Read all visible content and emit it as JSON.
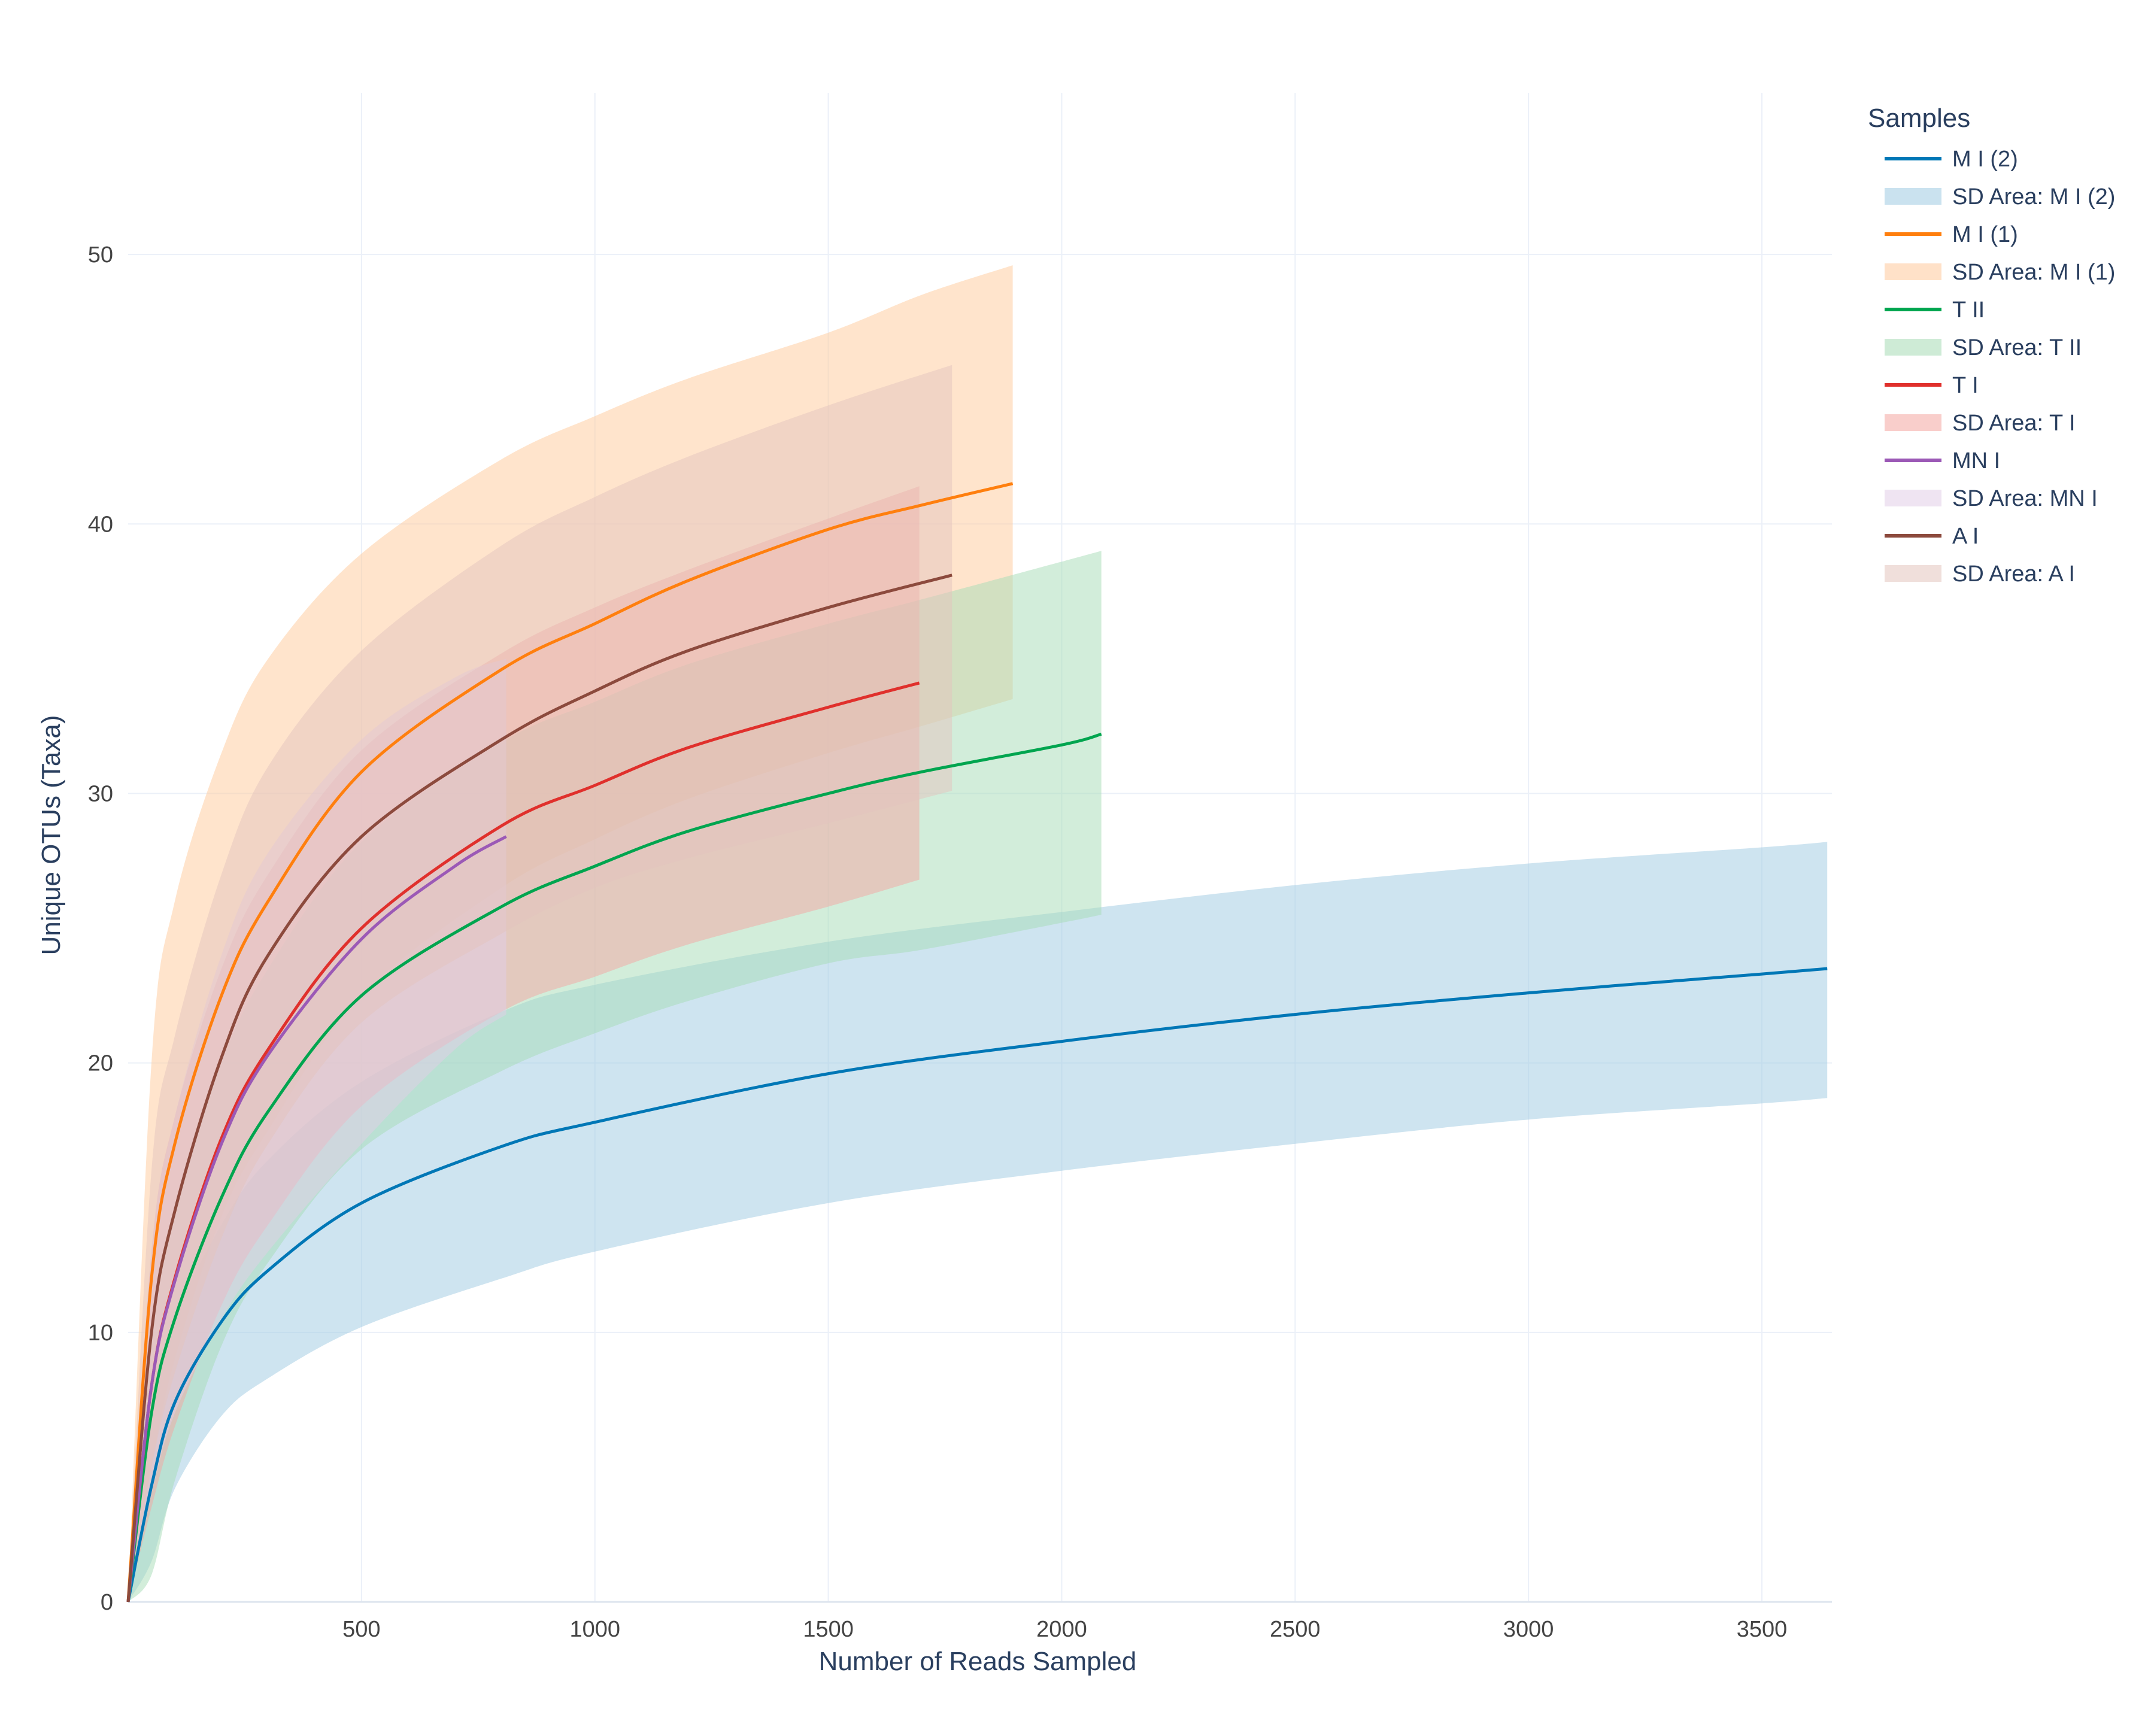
{
  "chart_data": {
    "type": "line",
    "xlabel": "Number of Reads Sampled",
    "ylabel": "Unique OTUs (Taxa)",
    "xlim": [
      0,
      3650
    ],
    "ylim": [
      0,
      56
    ],
    "x_ticks": [
      500,
      1000,
      1500,
      2000,
      2500,
      3000,
      3500
    ],
    "y_ticks": [
      0,
      10,
      20,
      30,
      40,
      50
    ],
    "grid": true,
    "legend_title": "Samples",
    "legend_position": "right",
    "series": [
      {
        "name": "M I (2)",
        "sd_name": "SD Area: M I (2)",
        "color": "#0077b6",
        "band_color": "#9ecae1",
        "points": [
          [
            0,
            0
          ],
          [
            50,
            4.3
          ],
          [
            100,
            7.4
          ],
          [
            200,
            10.4
          ],
          [
            300,
            12.3
          ],
          [
            500,
            14.8
          ],
          [
            800,
            16.9
          ],
          [
            1000,
            17.8
          ],
          [
            1500,
            19.6
          ],
          [
            2000,
            20.8
          ],
          [
            2500,
            21.8
          ],
          [
            3000,
            22.6
          ],
          [
            3500,
            23.3
          ],
          [
            3640,
            23.5
          ]
        ],
        "upper": [
          [
            0,
            0
          ],
          [
            50,
            7
          ],
          [
            100,
            10.5
          ],
          [
            200,
            14
          ],
          [
            300,
            16.4
          ],
          [
            500,
            19.3
          ],
          [
            800,
            21.9
          ],
          [
            1000,
            22.9
          ],
          [
            1500,
            24.5
          ],
          [
            2000,
            25.6
          ],
          [
            2500,
            26.6
          ],
          [
            3000,
            27.4
          ],
          [
            3500,
            28
          ],
          [
            3640,
            28.2
          ]
        ],
        "lower": [
          [
            0,
            0
          ],
          [
            50,
            1.5
          ],
          [
            100,
            4.2
          ],
          [
            200,
            6.9
          ],
          [
            300,
            8.3
          ],
          [
            500,
            10.2
          ],
          [
            800,
            12
          ],
          [
            1000,
            13
          ],
          [
            1500,
            14.8
          ],
          [
            2000,
            16
          ],
          [
            2500,
            17
          ],
          [
            3000,
            17.9
          ],
          [
            3500,
            18.5
          ],
          [
            3640,
            18.7
          ]
        ]
      },
      {
        "name": "M I (1)",
        "sd_name": "SD Area: M I (1)",
        "color": "#ff7f0e",
        "band_color": "#ffc99a",
        "points": [
          [
            0,
            0
          ],
          [
            50,
            12
          ],
          [
            100,
            17
          ],
          [
            200,
            22.5
          ],
          [
            300,
            26
          ],
          [
            500,
            30.8
          ],
          [
            800,
            34.6
          ],
          [
            1000,
            36.3
          ],
          [
            1200,
            37.9
          ],
          [
            1500,
            39.8
          ],
          [
            1700,
            40.7
          ],
          [
            1895,
            41.5
          ]
        ],
        "upper": [
          [
            0,
            0
          ],
          [
            50,
            20
          ],
          [
            100,
            26
          ],
          [
            200,
            31.5
          ],
          [
            300,
            35
          ],
          [
            500,
            38.9
          ],
          [
            800,
            42.4
          ],
          [
            1000,
            44
          ],
          [
            1200,
            45.4
          ],
          [
            1500,
            47.1
          ],
          [
            1700,
            48.5
          ],
          [
            1895,
            49.6
          ]
        ],
        "lower": [
          [
            0,
            0
          ],
          [
            50,
            5
          ],
          [
            100,
            9
          ],
          [
            200,
            14.3
          ],
          [
            300,
            17.5
          ],
          [
            500,
            22.5
          ],
          [
            800,
            26.5
          ],
          [
            1000,
            28.3
          ],
          [
            1200,
            29.8
          ],
          [
            1500,
            31.5
          ],
          [
            1700,
            32.5
          ],
          [
            1895,
            33.5
          ]
        ]
      },
      {
        "name": "T II",
        "sd_name": "SD Area: T II",
        "color": "#00a54f",
        "band_color": "#a6dbb5",
        "points": [
          [
            0,
            0
          ],
          [
            50,
            7
          ],
          [
            100,
            10.5
          ],
          [
            200,
            15
          ],
          [
            300,
            18.2
          ],
          [
            500,
            22.5
          ],
          [
            800,
            25.8
          ],
          [
            1000,
            27.3
          ],
          [
            1200,
            28.6
          ],
          [
            1500,
            30
          ],
          [
            1700,
            30.8
          ],
          [
            2000,
            31.8
          ],
          [
            2085,
            32.2
          ]
        ],
        "upper": [
          [
            0,
            0
          ],
          [
            50,
            10
          ],
          [
            100,
            14.5
          ],
          [
            200,
            20
          ],
          [
            300,
            23.5
          ],
          [
            500,
            28.2
          ],
          [
            800,
            31.9
          ],
          [
            1000,
            33.4
          ],
          [
            1200,
            34.8
          ],
          [
            1500,
            36.3
          ],
          [
            1700,
            37.2
          ],
          [
            2000,
            38.6
          ],
          [
            2085,
            39
          ]
        ],
        "lower": [
          [
            0,
            0
          ],
          [
            50,
            1
          ],
          [
            100,
            4.5
          ],
          [
            200,
            9.5
          ],
          [
            300,
            12.6
          ],
          [
            500,
            16.8
          ],
          [
            800,
            19.7
          ],
          [
            1000,
            21.1
          ],
          [
            1200,
            22.3
          ],
          [
            1500,
            23.7
          ],
          [
            1700,
            24.2
          ],
          [
            2000,
            25.2
          ],
          [
            2085,
            25.5
          ]
        ]
      },
      {
        "name": "T I",
        "sd_name": "SD Area: T I",
        "color": "#e0302c",
        "band_color": "#f4a5a1",
        "points": [
          [
            0,
            0
          ],
          [
            50,
            8
          ],
          [
            100,
            12
          ],
          [
            200,
            17.2
          ],
          [
            300,
            20.5
          ],
          [
            500,
            25
          ],
          [
            800,
            28.8
          ],
          [
            1000,
            30.3
          ],
          [
            1200,
            31.7
          ],
          [
            1500,
            33.2
          ],
          [
            1695,
            34.1
          ]
        ],
        "upper": [
          [
            0,
            0
          ],
          [
            50,
            13
          ],
          [
            100,
            18
          ],
          [
            200,
            23.5
          ],
          [
            300,
            27
          ],
          [
            500,
            31.6
          ],
          [
            800,
            35.2
          ],
          [
            1000,
            36.9
          ],
          [
            1200,
            38.3
          ],
          [
            1500,
            40.2
          ],
          [
            1695,
            41.4
          ]
        ],
        "lower": [
          [
            0,
            0
          ],
          [
            50,
            3.5
          ],
          [
            100,
            6.5
          ],
          [
            200,
            11
          ],
          [
            300,
            14
          ],
          [
            500,
            18.4
          ],
          [
            800,
            21.9
          ],
          [
            1000,
            23.2
          ],
          [
            1200,
            24.4
          ],
          [
            1500,
            25.8
          ],
          [
            1695,
            26.8
          ]
        ]
      },
      {
        "name": "MN I",
        "sd_name": "SD Area: MN I",
        "color": "#9b59b6",
        "band_color": "#e2cde8",
        "points": [
          [
            0,
            0
          ],
          [
            50,
            8
          ],
          [
            100,
            11.9
          ],
          [
            200,
            17
          ],
          [
            300,
            20.3
          ],
          [
            500,
            24.6
          ],
          [
            700,
            27.3
          ],
          [
            810,
            28.4
          ]
        ],
        "upper": [
          [
            0,
            0
          ],
          [
            50,
            13
          ],
          [
            100,
            18
          ],
          [
            200,
            24
          ],
          [
            300,
            27.8
          ],
          [
            500,
            32
          ],
          [
            700,
            34.3
          ],
          [
            810,
            35
          ]
        ],
        "lower": [
          [
            0,
            0
          ],
          [
            50,
            4
          ],
          [
            100,
            7
          ],
          [
            200,
            10.5
          ],
          [
            300,
            13
          ],
          [
            500,
            17
          ],
          [
            700,
            20.5
          ],
          [
            810,
            21.8
          ]
        ]
      },
      {
        "name": "A I",
        "sd_name": "SD Area: A I",
        "color": "#8c4a3d",
        "band_color": "#e3c4bd",
        "points": [
          [
            0,
            0
          ],
          [
            50,
            10
          ],
          [
            100,
            14.5
          ],
          [
            200,
            20.2
          ],
          [
            300,
            24
          ],
          [
            500,
            28.4
          ],
          [
            800,
            32
          ],
          [
            1000,
            33.8
          ],
          [
            1200,
            35.3
          ],
          [
            1500,
            36.9
          ],
          [
            1765,
            38.1
          ]
        ],
        "upper": [
          [
            0,
            0
          ],
          [
            50,
            16
          ],
          [
            100,
            21
          ],
          [
            200,
            27
          ],
          [
            300,
            31
          ],
          [
            500,
            35.3
          ],
          [
            800,
            39.2
          ],
          [
            1000,
            41
          ],
          [
            1200,
            42.5
          ],
          [
            1500,
            44.4
          ],
          [
            1765,
            45.9
          ]
        ],
        "lower": [
          [
            0,
            0
          ],
          [
            50,
            5
          ],
          [
            100,
            8.5
          ],
          [
            200,
            13.5
          ],
          [
            300,
            17
          ],
          [
            500,
            21.5
          ],
          [
            800,
            24.8
          ],
          [
            1000,
            26.5
          ],
          [
            1200,
            27.6
          ],
          [
            1500,
            28.9
          ],
          [
            1765,
            30.1
          ]
        ]
      }
    ]
  }
}
